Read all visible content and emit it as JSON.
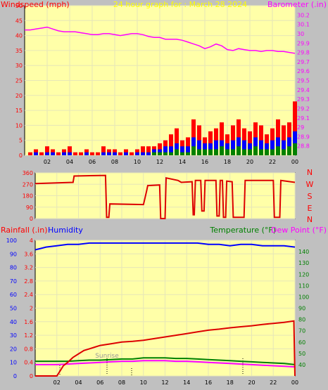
{
  "panel1": {
    "left_label": "Windspeed (mph)",
    "center_label": "24 hour graph for : March 28 2024",
    "right_label": "Barometer (.in)"
  },
  "panel2": {
    "dir_labels": [
      "N",
      "W",
      "S",
      "E",
      "N"
    ]
  },
  "panel3": {
    "rain_label": "Rainfall (.in)",
    "humidity_label": "Humidity",
    "temp_label": "Temperature (°F)",
    "dew_label": "Dew Point (°F)",
    "sunrise_label": "Sunrise"
  },
  "colors": {
    "plot_bg": "#ffffa8",
    "frame_bg": "#c0c0c0",
    "wind": "#ff0000",
    "gust_dir": "#d00000",
    "barometer": "#ff00ff",
    "rain": "#ff0000",
    "humidity": "#0000ff",
    "temperature": "#008000",
    "dewpoint": "#ff00ff",
    "title": "#ffff00"
  },
  "chart_data": [
    {
      "type": "line",
      "x_ticks": [
        "02",
        "04",
        "06",
        "08",
        "10",
        "12",
        "14",
        "16",
        "18",
        "20",
        "22",
        "00"
      ],
      "xlim": [
        0,
        24
      ],
      "left_axis": {
        "ylim": [
          0,
          50
        ],
        "ticks": [
          0,
          5,
          10,
          15,
          20,
          25,
          30,
          35,
          40,
          45,
          50
        ]
      },
      "right_axis": {
        "ylim": [
          28.7,
          30.3
        ],
        "ticks": [
          "28.8",
          "28.9",
          "29",
          "29.1",
          "29.2",
          "29.3",
          "29.4",
          "29.5",
          "29.6",
          "29.7",
          "29.8",
          "29.9",
          "30",
          "30.1",
          "30.2"
        ]
      },
      "series": [
        {
          "name": "Barometer",
          "axis": "right",
          "x": [
            0,
            0.5,
            1,
            1.5,
            2,
            2.5,
            3,
            3.5,
            4,
            4.5,
            5,
            5.5,
            6,
            6.5,
            7,
            7.5,
            8,
            8.5,
            9,
            9.5,
            10,
            10.5,
            11,
            11.5,
            12,
            12.5,
            13,
            13.5,
            14,
            14.5,
            15,
            15.5,
            16,
            16.5,
            17,
            17.5,
            18,
            18.5,
            19,
            19.5,
            20,
            20.5,
            21,
            21.5,
            22,
            22.5,
            23,
            23.5,
            24
          ],
          "y": [
            30.04,
            30.04,
            30.05,
            30.06,
            30.07,
            30.05,
            30.03,
            30.02,
            30.02,
            30.02,
            30.01,
            30.0,
            29.99,
            29.99,
            30.0,
            30.0,
            29.99,
            29.98,
            29.99,
            30.0,
            30.0,
            29.99,
            29.97,
            29.96,
            29.96,
            29.94,
            29.94,
            29.94,
            29.93,
            29.91,
            29.89,
            29.87,
            29.84,
            29.86,
            29.89,
            29.87,
            29.83,
            29.82,
            29.84,
            29.83,
            29.82,
            29.82,
            29.81,
            29.82,
            29.82,
            29.81,
            29.81,
            29.8,
            29.79
          ]
        }
      ],
      "wind_bars": {
        "left_axis": "mph",
        "hours": [
          0.5,
          1,
          1.5,
          2,
          2.5,
          3,
          3.5,
          4,
          4.5,
          5,
          5.5,
          6,
          6.5,
          7,
          7.5,
          8,
          8.5,
          9,
          9.5,
          10,
          10.5,
          11,
          11.5,
          12,
          12.5,
          13,
          13.5,
          14,
          14.5,
          15,
          15.5,
          16,
          16.5,
          17,
          17.5,
          18,
          18.5,
          19,
          19.5,
          20,
          20.5,
          21,
          21.5,
          22,
          22.5,
          23,
          23.5,
          24
        ],
        "gust": [
          1,
          2,
          1,
          3,
          2,
          1,
          2,
          3,
          1,
          1,
          2,
          1,
          1,
          3,
          2,
          2,
          1,
          2,
          1,
          2,
          3,
          3,
          3,
          4,
          5,
          7,
          9,
          5,
          6,
          12,
          10,
          6,
          8,
          9,
          11,
          7,
          10,
          12,
          9,
          8,
          11,
          10,
          7,
          9,
          12,
          10,
          11,
          18
        ],
        "avg": [
          0,
          1,
          0,
          1,
          1,
          0,
          1,
          1,
          0,
          0,
          1,
          0,
          0,
          1,
          1,
          1,
          0,
          1,
          0,
          1,
          1,
          1,
          2,
          2,
          3,
          3,
          4,
          3,
          3,
          6,
          5,
          4,
          4,
          5,
          5,
          4,
          5,
          6,
          5,
          4,
          6,
          5,
          4,
          5,
          6,
          5,
          6,
          8
        ],
        "light": [
          0,
          0,
          0,
          0,
          0,
          0,
          0,
          0,
          0,
          0,
          0,
          0,
          0,
          0,
          0,
          0,
          0,
          0,
          0,
          0,
          0,
          0,
          1,
          1,
          1,
          1,
          2,
          1,
          1,
          3,
          2,
          2,
          2,
          2,
          3,
          2,
          2,
          3,
          2,
          2,
          3,
          2,
          2,
          2,
          3,
          2,
          3,
          4
        ]
      }
    },
    {
      "type": "line",
      "x_ticks": [
        "02",
        "04",
        "06",
        "08",
        "10",
        "12",
        "14",
        "16",
        "18",
        "20",
        "22",
        "00"
      ],
      "xlim": [
        0,
        24
      ],
      "left_axis": {
        "ylim": [
          0,
          360
        ],
        "ticks": [
          0,
          90,
          180,
          270,
          360
        ]
      },
      "series": [
        {
          "name": "Wind Direction",
          "x": [
            0,
            3.5,
            3.6,
            6.5,
            6.6,
            6.8,
            6.9,
            10,
            10.1,
            10.3,
            10.4,
            11.5,
            11.6,
            12,
            12.1,
            13.2,
            13.5,
            14.5,
            14.6,
            14.7,
            14.8,
            15.3,
            15.4,
            15.6,
            15.7,
            16.7,
            16.8,
            17.0,
            17.1,
            17.3,
            17.4,
            17.6,
            17.7,
            18.2,
            18.3,
            19.3,
            19.4,
            22.0,
            22.1,
            22.6,
            22.7,
            24
          ],
          "y": [
            275,
            285,
            335,
            340,
            10,
            10,
            115,
            110,
            145,
            220,
            260,
            265,
            0,
            0,
            320,
            300,
            285,
            290,
            30,
            30,
            300,
            300,
            60,
            60,
            300,
            300,
            20,
            20,
            300,
            300,
            10,
            10,
            295,
            290,
            10,
            10,
            300,
            300,
            10,
            10,
            300,
            285
          ]
        }
      ]
    },
    {
      "type": "line",
      "x_ticks": [
        "02",
        "04",
        "06",
        "08",
        "10",
        "12",
        "14",
        "16",
        "18",
        "20",
        "22",
        "00"
      ],
      "xlim": [
        0,
        24
      ],
      "left_axis": {
        "ylim": [
          0,
          4
        ],
        "ticks": [
          "0",
          "0.4",
          "0.8",
          "1.2",
          "1.6",
          "2",
          "2.4",
          "2.8",
          "3.2",
          "3.6",
          "4"
        ]
      },
      "humidity_axis": {
        "ylim": [
          0,
          100
        ],
        "ticks": [
          0,
          10,
          20,
          30,
          40,
          50,
          60,
          70,
          80,
          90,
          100
        ]
      },
      "right_axis": {
        "ylim": [
          30,
          150
        ],
        "ticks": [
          40,
          50,
          60,
          70,
          80,
          90,
          100,
          110,
          120,
          130,
          140
        ]
      },
      "series": [
        {
          "name": "Rainfall",
          "axis": "left",
          "x": [
            0,
            2,
            2.3,
            2.6,
            3.0,
            3.5,
            4.0,
            4.5,
            5.0,
            5.5,
            6.0,
            7.0,
            8.0,
            9.0,
            10.0,
            11.0,
            12.0,
            13.0,
            14.0,
            15.0,
            16.0,
            17.0,
            18.0,
            19.0,
            20.0,
            21.0,
            22.0,
            23.0,
            23.9,
            24
          ],
          "y": [
            0,
            0,
            0.15,
            0.3,
            0.4,
            0.55,
            0.65,
            0.75,
            0.8,
            0.85,
            0.9,
            0.95,
            1.0,
            1.02,
            1.05,
            1.1,
            1.15,
            1.2,
            1.25,
            1.3,
            1.35,
            1.38,
            1.42,
            1.45,
            1.48,
            1.52,
            1.55,
            1.58,
            1.62,
            0
          ]
        },
        {
          "name": "Humidity",
          "axis": "humidity",
          "x": [
            0,
            0.5,
            1,
            2,
            3,
            4,
            5,
            6,
            7,
            8,
            9,
            10,
            11,
            12,
            13,
            14,
            15,
            16,
            17,
            18,
            19,
            20,
            21,
            22,
            23,
            24
          ],
          "y": [
            93,
            94,
            95,
            96,
            97,
            97,
            98,
            98,
            98,
            98,
            98,
            98,
            98,
            98,
            98,
            98,
            98,
            97,
            97,
            96,
            97,
            97,
            96,
            96,
            96,
            95
          ]
        },
        {
          "name": "Temperature",
          "axis": "right",
          "x": [
            0,
            1,
            2,
            3,
            4,
            5,
            6,
            7,
            8,
            9,
            10,
            11,
            12,
            13,
            14,
            15,
            16,
            17,
            18,
            19,
            20,
            21,
            22,
            23,
            24
          ],
          "y": [
            43,
            43,
            43,
            43,
            43.5,
            44,
            44,
            44.5,
            45,
            45,
            46,
            46,
            46,
            45.5,
            45.5,
            45,
            44.5,
            44,
            43.5,
            43,
            42.5,
            42,
            41.5,
            41,
            40
          ]
        },
        {
          "name": "Dew Point",
          "axis": "right",
          "x": [
            0,
            1,
            2,
            3,
            4,
            5,
            6,
            7,
            8,
            9,
            10,
            11,
            12,
            13,
            14,
            15,
            16,
            17,
            18,
            19,
            20,
            21,
            22,
            23,
            24
          ],
          "y": [
            40,
            40,
            40,
            40.5,
            41,
            41.5,
            42,
            42.5,
            43,
            43,
            43.5,
            43.5,
            43.5,
            43,
            43,
            42.5,
            42,
            41.5,
            41,
            40.5,
            40,
            39.5,
            39,
            38.5,
            38
          ]
        }
      ]
    }
  ]
}
